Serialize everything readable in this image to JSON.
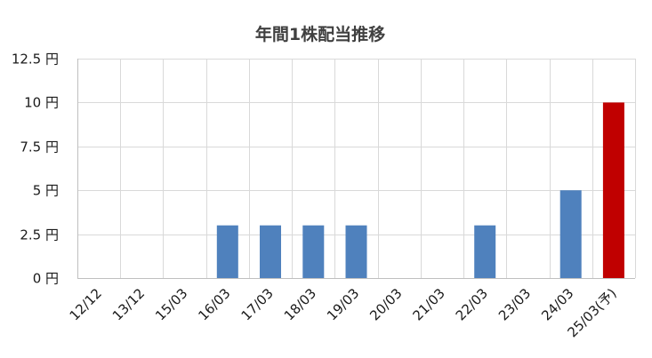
{
  "chart_data": {
    "type": "bar",
    "title": "年間1株配当推移",
    "xlabel": "",
    "ylabel": "",
    "categories": [
      "12/12",
      "13/12",
      "15/03",
      "16/03",
      "17/03",
      "18/03",
      "19/03",
      "20/03",
      "21/03",
      "22/03",
      "23/03",
      "24/03",
      "25/03(予)"
    ],
    "values": [
      0,
      0,
      0,
      3,
      3,
      3,
      3,
      0,
      0,
      3,
      0,
      5,
      10
    ],
    "bar_colors": [
      "#4f81bd",
      "#4f81bd",
      "#4f81bd",
      "#4f81bd",
      "#4f81bd",
      "#4f81bd",
      "#4f81bd",
      "#4f81bd",
      "#4f81bd",
      "#4f81bd",
      "#4f81bd",
      "#4f81bd",
      "#c00000"
    ],
    "ylim": [
      0,
      12.5
    ],
    "yticks": [
      0,
      2.5,
      5,
      7.5,
      10,
      12.5
    ],
    "ytick_labels": [
      "0 円",
      "2.5 円",
      "5 円",
      "7.5 円",
      "10 円",
      "12.5 円"
    ],
    "grid": true,
    "legend": "none"
  }
}
